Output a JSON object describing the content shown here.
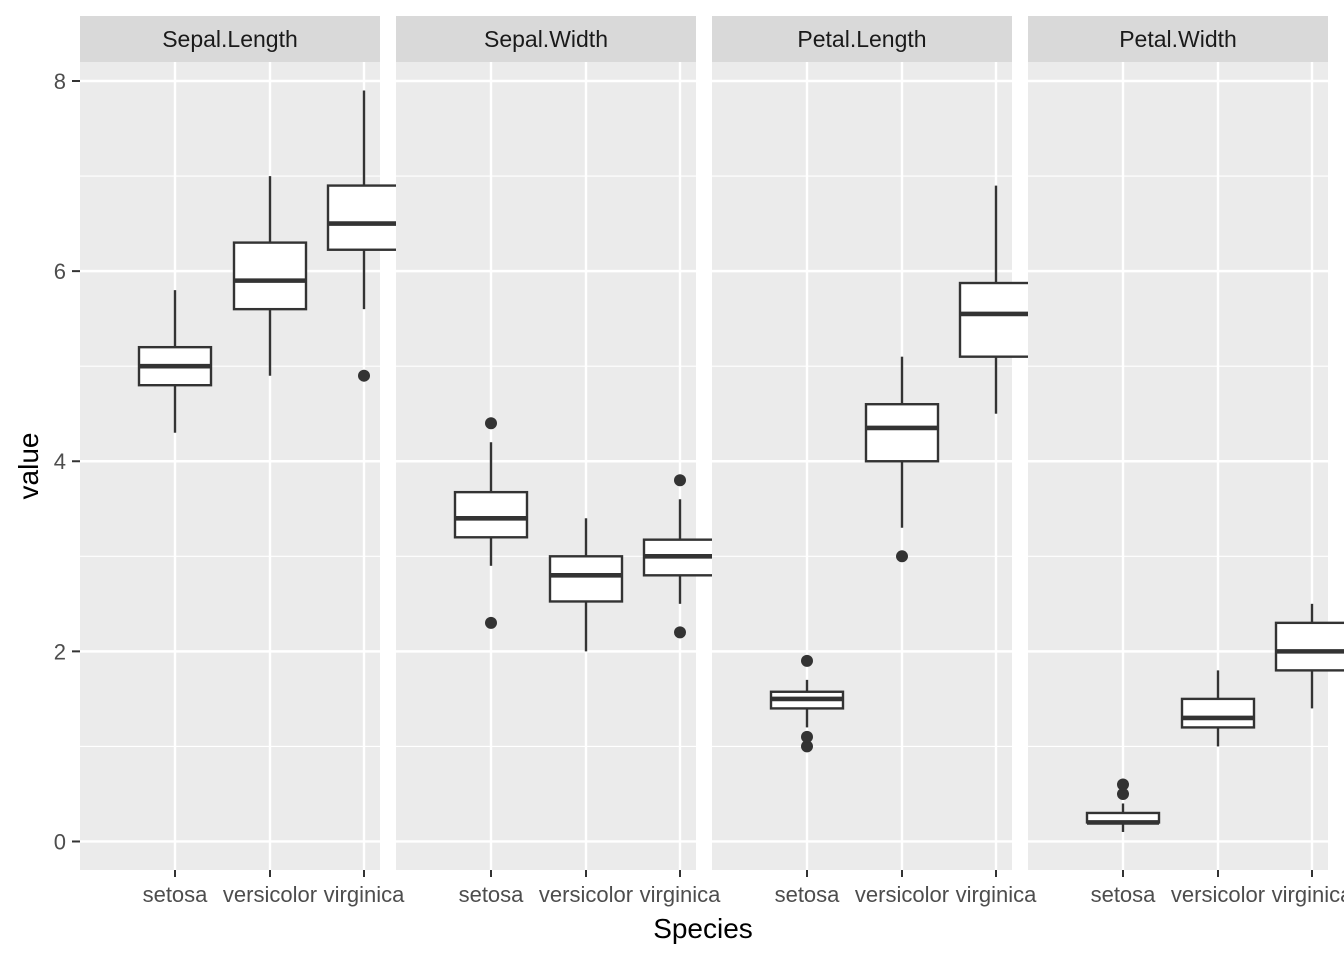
{
  "chart_data": {
    "type": "boxplot",
    "xlabel": "Species",
    "ylabel": "value",
    "ylim": [
      -0.3,
      8.2
    ],
    "y_ticks": [
      0,
      2,
      4,
      6,
      8
    ],
    "y_minor_ticks": [
      1,
      3,
      5,
      7
    ],
    "categories": [
      "setosa",
      "versicolor",
      "virginica"
    ],
    "colors": {
      "panel_bg": "#ebebeb",
      "strip_bg": "#d9d9d9",
      "grid": "#ffffff",
      "box_line": "#333333",
      "box_fill": "#ffffff"
    },
    "panels": [
      {
        "title": "Sepal.Length",
        "boxes": [
          {
            "category": "setosa",
            "min": 4.3,
            "q1": 4.8,
            "median": 5.0,
            "q3": 5.2,
            "max": 5.8,
            "outliers": []
          },
          {
            "category": "versicolor",
            "min": 4.9,
            "q1": 5.6,
            "median": 5.9,
            "q3": 6.3,
            "max": 7.0,
            "outliers": []
          },
          {
            "category": "virginica",
            "min": 5.6,
            "q1": 6.225,
            "median": 6.5,
            "q3": 6.9,
            "max": 7.9,
            "outliers": [
              4.9
            ]
          }
        ]
      },
      {
        "title": "Sepal.Width",
        "boxes": [
          {
            "category": "setosa",
            "min": 2.9,
            "q1": 3.2,
            "median": 3.4,
            "q3": 3.675,
            "max": 4.2,
            "outliers": [
              2.3,
              4.4
            ]
          },
          {
            "category": "versicolor",
            "min": 2.0,
            "q1": 2.525,
            "median": 2.8,
            "q3": 3.0,
            "max": 3.4,
            "outliers": []
          },
          {
            "category": "virginica",
            "min": 2.5,
            "q1": 2.8,
            "median": 3.0,
            "q3": 3.175,
            "max": 3.6,
            "outliers": [
              2.2,
              3.8
            ]
          }
        ]
      },
      {
        "title": "Petal.Length",
        "boxes": [
          {
            "category": "setosa",
            "min": 1.2,
            "q1": 1.4,
            "median": 1.5,
            "q3": 1.575,
            "max": 1.7,
            "outliers": [
              1.0,
              1.1,
              1.9
            ]
          },
          {
            "category": "versicolor",
            "min": 3.3,
            "q1": 4.0,
            "median": 4.35,
            "q3": 4.6,
            "max": 5.1,
            "outliers": [
              3.0
            ]
          },
          {
            "category": "virginica",
            "min": 4.5,
            "q1": 5.1,
            "median": 5.55,
            "q3": 5.875,
            "max": 6.9,
            "outliers": []
          }
        ]
      },
      {
        "title": "Petal.Width",
        "boxes": [
          {
            "category": "setosa",
            "min": 0.1,
            "q1": 0.2,
            "median": 0.2,
            "q3": 0.3,
            "max": 0.4,
            "outliers": [
              0.5,
              0.6
            ]
          },
          {
            "category": "versicolor",
            "min": 1.0,
            "q1": 1.2,
            "median": 1.3,
            "q3": 1.5,
            "max": 1.8,
            "outliers": []
          },
          {
            "category": "virginica",
            "min": 1.4,
            "q1": 1.8,
            "median": 2.0,
            "q3": 2.3,
            "max": 2.5,
            "outliers": []
          }
        ]
      }
    ]
  }
}
